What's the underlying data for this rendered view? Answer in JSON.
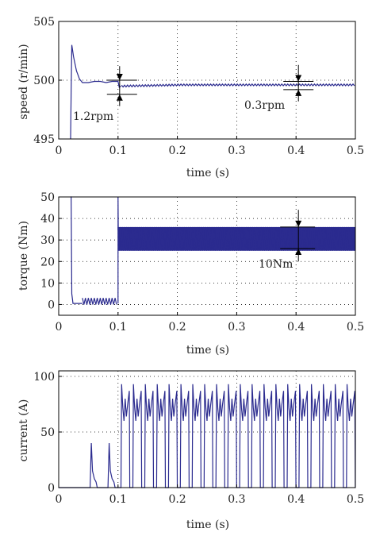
{
  "colors": {
    "trace": "#2b2b8f",
    "axis": "#000000",
    "grid": "#000000",
    "text": "#222222"
  },
  "chart_data": [
    {
      "type": "line",
      "ylabel": "speed (r/min)",
      "xlabel": "time (s)",
      "xlim": [
        0,
        0.5
      ],
      "ylim": [
        495,
        505
      ],
      "xticks": [
        "0",
        "0.1",
        "0.2",
        "0.3",
        "0.4",
        "0.5"
      ],
      "yticks": [
        "495",
        "500",
        "505"
      ],
      "grid": true,
      "annotations": [
        "1.2rpm",
        "0.3rpm"
      ],
      "series": [
        {
          "x": [
            0.02,
            0.021,
            0.022,
            0.025,
            0.03,
            0.035,
            0.04,
            0.05,
            0.06,
            0.07,
            0.08,
            0.09,
            0.1,
            0.102,
            0.105,
            0.11,
            0.13,
            0.15,
            0.2,
            0.25,
            0.3,
            0.35,
            0.4,
            0.45,
            0.5
          ],
          "y": [
            495,
            499,
            503,
            502,
            500.8,
            500.1,
            499.8,
            499.8,
            499.9,
            499.9,
            499.8,
            499.9,
            499.9,
            499.4,
            499.5,
            499.5,
            499.5,
            499.5,
            499.6,
            499.6,
            499.6,
            499.6,
            499.6,
            499.6,
            499.6
          ],
          "ripple": 0.15,
          "ripple_start": 0.1
        }
      ]
    },
    {
      "type": "line",
      "ylabel": "torque (Nm)",
      "xlabel": "time (s)",
      "xlim": [
        0,
        0.5
      ],
      "ylim": [
        -5,
        50
      ],
      "xticks": [
        "0",
        "0.1",
        "0.2",
        "0.3",
        "0.4",
        "0.5"
      ],
      "yticks": [
        "0",
        "10",
        "20",
        "30",
        "40",
        "50"
      ],
      "grid": true,
      "annotations": [
        "10Nm"
      ],
      "series": [
        {
          "x": [
            0.02,
            0.021,
            0.024,
            0.025,
            0.1,
            0.1,
            0.5
          ],
          "y": [
            50,
            50,
            1,
            0.5,
            0.5,
            50,
            30
          ],
          "band_start": 0.1,
          "band_min": 25,
          "band_max": 36,
          "low_band_start": 0.04,
          "low_band_min": 0,
          "low_band_max": 3
        }
      ]
    },
    {
      "type": "line",
      "ylabel": "current (A)",
      "xlabel": "time (s)",
      "xlim": [
        0,
        0.5
      ],
      "ylim": [
        0,
        105
      ],
      "xticks": [
        "0",
        "0.1",
        "0.2",
        "0.3",
        "0.4",
        "0.5"
      ],
      "yticks": [
        "0",
        "50",
        "100"
      ],
      "grid": true,
      "series": [
        {
          "small_pulses": [
            0.055,
            0.085
          ],
          "small_peak": 40,
          "pulse_starts": [
            0.105,
            0.125,
            0.145,
            0.165,
            0.185,
            0.205,
            0.225,
            0.245,
            0.265,
            0.285,
            0.305,
            0.325,
            0.345,
            0.365,
            0.385,
            0.405,
            0.425,
            0.445,
            0.465,
            0.485
          ],
          "pulse_peak": 93,
          "pulse_mid": 60,
          "pulse_width": 0.014
        }
      ]
    }
  ]
}
